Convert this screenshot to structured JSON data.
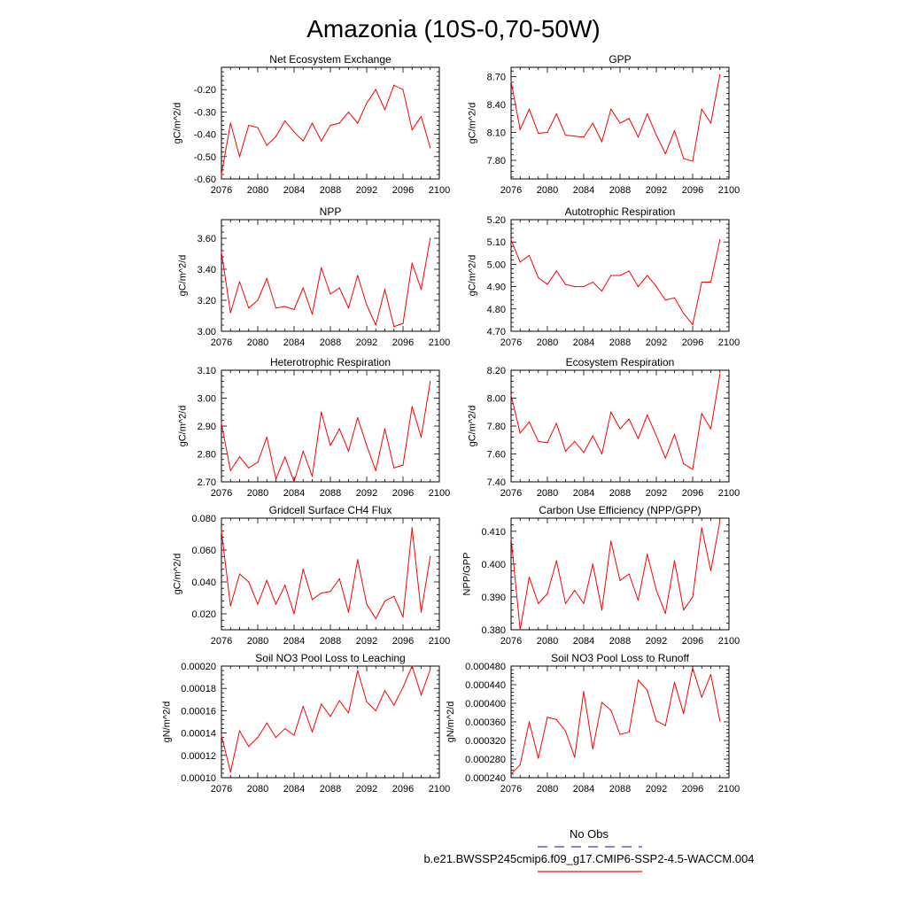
{
  "title": "Amazonia (10S-0,70-50W)",
  "legend": {
    "obs_label": "No Obs",
    "obs_color": "#3b3bd0",
    "case_label": "b.e21.BWSSP245cmip6.f09_g17.CMIP6-SSP2-4.5-WACCM.004",
    "case_color": "#ff0000"
  },
  "chart_data": [
    {
      "type": "line",
      "title": "Net Ecosystem Exchange",
      "ylabel": "gC/m^2/d",
      "xlim": [
        2076,
        2100
      ],
      "xticks": [
        2076,
        2080,
        2084,
        2088,
        2092,
        2096,
        2100
      ],
      "xtick_labels": [
        "2076",
        "2080",
        "2084",
        "2088",
        "2092",
        "2096",
        "2100"
      ],
      "ylim": [
        -0.6,
        -0.1
      ],
      "yticks": [
        -0.6,
        -0.5,
        -0.4,
        -0.3,
        -0.2
      ],
      "ytick_labels": [
        "-0.60",
        "-0.50",
        "-0.40",
        "-0.30",
        "-0.20"
      ],
      "series": [
        {
          "color": "#ff0000",
          "x": [
            2076,
            2077,
            2078,
            2079,
            2080,
            2081,
            2082,
            2083,
            2084,
            2085,
            2086,
            2087,
            2088,
            2089,
            2090,
            2091,
            2092,
            2093,
            2094,
            2095,
            2096,
            2097,
            2098,
            2099
          ],
          "values": [
            -0.58,
            -0.35,
            -0.5,
            -0.36,
            -0.37,
            -0.45,
            -0.41,
            -0.34,
            -0.39,
            -0.43,
            -0.35,
            -0.43,
            -0.36,
            -0.35,
            -0.3,
            -0.35,
            -0.26,
            -0.2,
            -0.29,
            -0.18,
            -0.2,
            -0.38,
            -0.32,
            -0.46
          ]
        }
      ]
    },
    {
      "type": "line",
      "title": "GPP",
      "ylabel": "gC/m^2/d",
      "xlim": [
        2076,
        2100
      ],
      "xticks": [
        2076,
        2080,
        2084,
        2088,
        2092,
        2096,
        2100
      ],
      "xtick_labels": [
        "2076",
        "2080",
        "2084",
        "2088",
        "2092",
        "2096",
        "2100"
      ],
      "ylim": [
        7.6,
        8.8
      ],
      "yticks": [
        7.8,
        8.1,
        8.4,
        8.7
      ],
      "ytick_labels": [
        "7.80",
        "8.10",
        "8.40",
        "8.70"
      ],
      "series": [
        {
          "color": "#ff0000",
          "x": [
            2076,
            2077,
            2078,
            2079,
            2080,
            2081,
            2082,
            2083,
            2084,
            2085,
            2086,
            2087,
            2088,
            2089,
            2090,
            2091,
            2092,
            2093,
            2094,
            2095,
            2096,
            2097,
            2098,
            2099
          ],
          "values": [
            8.65,
            8.13,
            8.35,
            8.09,
            8.1,
            8.3,
            8.07,
            8.06,
            8.05,
            8.2,
            8.0,
            8.35,
            8.2,
            8.25,
            8.05,
            8.3,
            8.07,
            7.87,
            8.12,
            7.82,
            7.79,
            8.35,
            8.2,
            8.72
          ]
        }
      ]
    },
    {
      "type": "line",
      "title": "NPP",
      "ylabel": "gC/m^2/d",
      "xlim": [
        2076,
        2100
      ],
      "xticks": [
        2076,
        2080,
        2084,
        2088,
        2092,
        2096,
        2100
      ],
      "xtick_labels": [
        "2076",
        "2080",
        "2084",
        "2088",
        "2092",
        "2096",
        "2100"
      ],
      "ylim": [
        3.0,
        3.72
      ],
      "yticks": [
        3.0,
        3.2,
        3.4,
        3.6
      ],
      "ytick_labels": [
        "3.00",
        "3.20",
        "3.40",
        "3.60"
      ],
      "series": [
        {
          "color": "#ff0000",
          "x": [
            2076,
            2077,
            2078,
            2079,
            2080,
            2081,
            2082,
            2083,
            2084,
            2085,
            2086,
            2087,
            2088,
            2089,
            2090,
            2091,
            2092,
            2093,
            2094,
            2095,
            2096,
            2097,
            2098,
            2099
          ],
          "values": [
            3.51,
            3.12,
            3.32,
            3.15,
            3.2,
            3.34,
            3.15,
            3.16,
            3.14,
            3.28,
            3.11,
            3.41,
            3.24,
            3.28,
            3.15,
            3.36,
            3.17,
            3.04,
            3.27,
            3.03,
            3.05,
            3.44,
            3.27,
            3.6
          ]
        }
      ]
    },
    {
      "type": "line",
      "title": "Autotrophic Respiration",
      "ylabel": "gC/m^2/d",
      "xlim": [
        2076,
        2100
      ],
      "xticks": [
        2076,
        2080,
        2084,
        2088,
        2092,
        2096,
        2100
      ],
      "xtick_labels": [
        "2076",
        "2080",
        "2084",
        "2088",
        "2092",
        "2096",
        "2100"
      ],
      "ylim": [
        4.7,
        5.2
      ],
      "yticks": [
        4.7,
        4.8,
        4.9,
        5.0,
        5.1,
        5.2
      ],
      "ytick_labels": [
        "4.70",
        "4.80",
        "4.90",
        "5.00",
        "5.10",
        "5.20"
      ],
      "series": [
        {
          "color": "#ff0000",
          "x": [
            2076,
            2077,
            2078,
            2079,
            2080,
            2081,
            2082,
            2083,
            2084,
            2085,
            2086,
            2087,
            2088,
            2089,
            2090,
            2091,
            2092,
            2093,
            2094,
            2095,
            2096,
            2097,
            2098,
            2099
          ],
          "values": [
            5.11,
            5.01,
            5.04,
            4.94,
            4.91,
            4.97,
            4.91,
            4.9,
            4.9,
            4.92,
            4.88,
            4.95,
            4.95,
            4.97,
            4.9,
            4.95,
            4.9,
            4.84,
            4.85,
            4.78,
            4.73,
            4.92,
            4.92,
            5.11
          ]
        }
      ]
    },
    {
      "type": "line",
      "title": "Heterotrophic Respiration",
      "ylabel": "gC/m^2/d",
      "xlim": [
        2076,
        2100
      ],
      "xticks": [
        2076,
        2080,
        2084,
        2088,
        2092,
        2096,
        2100
      ],
      "xtick_labels": [
        "2076",
        "2080",
        "2084",
        "2088",
        "2092",
        "2096",
        "2100"
      ],
      "ylim": [
        2.7,
        3.1
      ],
      "yticks": [
        2.7,
        2.8,
        2.9,
        3.0,
        3.1
      ],
      "ytick_labels": [
        "2.70",
        "2.80",
        "2.90",
        "3.00",
        "3.10"
      ],
      "series": [
        {
          "color": "#ff0000",
          "x": [
            2076,
            2077,
            2078,
            2079,
            2080,
            2081,
            2082,
            2083,
            2084,
            2085,
            2086,
            2087,
            2088,
            2089,
            2090,
            2091,
            2092,
            2093,
            2094,
            2095,
            2096,
            2097,
            2098,
            2099
          ],
          "values": [
            2.91,
            2.74,
            2.79,
            2.75,
            2.77,
            2.86,
            2.71,
            2.79,
            2.7,
            2.81,
            2.72,
            2.95,
            2.83,
            2.89,
            2.81,
            2.93,
            2.83,
            2.74,
            2.89,
            2.75,
            2.76,
            2.97,
            2.86,
            3.06
          ]
        }
      ]
    },
    {
      "type": "line",
      "title": "Ecosystem Respiration",
      "ylabel": "gC/m^2/d",
      "xlim": [
        2076,
        2100
      ],
      "xticks": [
        2076,
        2080,
        2084,
        2088,
        2092,
        2096,
        2100
      ],
      "xtick_labels": [
        "2076",
        "2080",
        "2084",
        "2088",
        "2092",
        "2096",
        "2100"
      ],
      "ylim": [
        7.4,
        8.2
      ],
      "yticks": [
        7.4,
        7.6,
        7.8,
        8.0,
        8.2
      ],
      "ytick_labels": [
        "7.40",
        "7.60",
        "7.80",
        "8.00",
        "8.20"
      ],
      "series": [
        {
          "color": "#ff0000",
          "x": [
            2076,
            2077,
            2078,
            2079,
            2080,
            2081,
            2082,
            2083,
            2084,
            2085,
            2086,
            2087,
            2088,
            2089,
            2090,
            2091,
            2092,
            2093,
            2094,
            2095,
            2096,
            2097,
            2098,
            2099
          ],
          "values": [
            8.02,
            7.75,
            7.83,
            7.69,
            7.68,
            7.82,
            7.62,
            7.69,
            7.61,
            7.73,
            7.6,
            7.9,
            7.78,
            7.85,
            7.71,
            7.88,
            7.73,
            7.57,
            7.74,
            7.53,
            7.49,
            7.89,
            7.78,
            8.17
          ]
        }
      ]
    },
    {
      "type": "line",
      "title": "Gridcell Surface CH4 Flux",
      "ylabel": "gC/m^2/d",
      "xlim": [
        2076,
        2100
      ],
      "xticks": [
        2076,
        2080,
        2084,
        2088,
        2092,
        2096,
        2100
      ],
      "xtick_labels": [
        "2076",
        "2080",
        "2084",
        "2088",
        "2092",
        "2096",
        "2100"
      ],
      "ylim": [
        0.01,
        0.08
      ],
      "yticks": [
        0.02,
        0.04,
        0.06,
        0.08
      ],
      "ytick_labels": [
        "0.020",
        "0.040",
        "0.060",
        "0.080"
      ],
      "series": [
        {
          "color": "#ff0000",
          "x": [
            2076,
            2077,
            2078,
            2079,
            2080,
            2081,
            2082,
            2083,
            2084,
            2085,
            2086,
            2087,
            2088,
            2089,
            2090,
            2091,
            2092,
            2093,
            2094,
            2095,
            2096,
            2097,
            2098,
            2099
          ],
          "values": [
            0.072,
            0.025,
            0.045,
            0.04,
            0.026,
            0.041,
            0.026,
            0.038,
            0.02,
            0.048,
            0.029,
            0.033,
            0.034,
            0.042,
            0.021,
            0.054,
            0.026,
            0.017,
            0.028,
            0.031,
            0.018,
            0.074,
            0.021,
            0.056
          ]
        }
      ]
    },
    {
      "type": "line",
      "title": "Carbon Use Efficiency (NPP/GPP)",
      "ylabel": "NPP/GPP",
      "xlim": [
        2076,
        2100
      ],
      "xticks": [
        2076,
        2080,
        2084,
        2088,
        2092,
        2096,
        2100
      ],
      "xtick_labels": [
        "2076",
        "2080",
        "2084",
        "2088",
        "2092",
        "2096",
        "2100"
      ],
      "ylim": [
        0.38,
        0.414
      ],
      "yticks": [
        0.38,
        0.39,
        0.4,
        0.41
      ],
      "ytick_labels": [
        "0.380",
        "0.390",
        "0.400",
        "0.410"
      ],
      "series": [
        {
          "color": "#ff0000",
          "x": [
            2076,
            2077,
            2078,
            2079,
            2080,
            2081,
            2082,
            2083,
            2084,
            2085,
            2086,
            2087,
            2088,
            2089,
            2090,
            2091,
            2092,
            2093,
            2094,
            2095,
            2096,
            2097,
            2098,
            2099
          ],
          "values": [
            0.408,
            0.38,
            0.396,
            0.388,
            0.391,
            0.401,
            0.388,
            0.392,
            0.388,
            0.4,
            0.386,
            0.407,
            0.395,
            0.397,
            0.389,
            0.403,
            0.392,
            0.385,
            0.401,
            0.386,
            0.39,
            0.411,
            0.398,
            0.413
          ]
        }
      ]
    },
    {
      "type": "line",
      "title": "Soil NO3 Pool Loss to Leaching",
      "ylabel": "gN/m^2/d",
      "xlim": [
        2076,
        2100
      ],
      "xticks": [
        2076,
        2080,
        2084,
        2088,
        2092,
        2096,
        2100
      ],
      "xtick_labels": [
        "2076",
        "2080",
        "2084",
        "2088",
        "2092",
        "2096",
        "2100"
      ],
      "ylim": [
        0.0001,
        0.0002
      ],
      "yticks": [
        0.0001,
        0.00012,
        0.00014,
        0.00016,
        0.00018,
        0.0002
      ],
      "ytick_labels": [
        "0.00010",
        "0.00012",
        "0.00014",
        "0.00016",
        "0.00018",
        "0.00020"
      ],
      "series": [
        {
          "color": "#ff0000",
          "x": [
            2076,
            2077,
            2078,
            2079,
            2080,
            2081,
            2082,
            2083,
            2084,
            2085,
            2086,
            2087,
            2088,
            2089,
            2090,
            2091,
            2092,
            2093,
            2094,
            2095,
            2096,
            2097,
            2098,
            2099
          ],
          "values": [
            0.000138,
            0.000105,
            0.000142,
            0.000128,
            0.000136,
            0.000149,
            0.000136,
            0.000144,
            0.000138,
            0.000164,
            0.000141,
            0.000166,
            0.000155,
            0.000169,
            0.000158,
            0.000196,
            0.000168,
            0.00016,
            0.000178,
            0.000165,
            0.000181,
            0.0002,
            0.000174,
            0.000197
          ]
        }
      ]
    },
    {
      "type": "line",
      "title": "Soil NO3 Pool Loss to Runoff",
      "ylabel": "gN/m^2/d",
      "xlim": [
        2076,
        2100
      ],
      "xticks": [
        2076,
        2080,
        2084,
        2088,
        2092,
        2096,
        2100
      ],
      "xtick_labels": [
        "2076",
        "2080",
        "2084",
        "2088",
        "2092",
        "2096",
        "2100"
      ],
      "ylim": [
        0.00024,
        0.00048
      ],
      "yticks": [
        0.00024,
        0.00028,
        0.00032,
        0.00036,
        0.0004,
        0.00044,
        0.00048
      ],
      "ytick_labels": [
        "0.000240",
        "0.000280",
        "0.000320",
        "0.000360",
        "0.000400",
        "0.000440",
        "0.000480"
      ],
      "series": [
        {
          "color": "#ff0000",
          "x": [
            2076,
            2077,
            2078,
            2079,
            2080,
            2081,
            2082,
            2083,
            2084,
            2085,
            2086,
            2087,
            2088,
            2089,
            2090,
            2091,
            2092,
            2093,
            2094,
            2095,
            2096,
            2097,
            2098,
            2099
          ],
          "values": [
            0.000248,
            0.000268,
            0.00036,
            0.000282,
            0.00037,
            0.000365,
            0.00034,
            0.000284,
            0.000425,
            0.000302,
            0.000402,
            0.000385,
            0.000333,
            0.000338,
            0.00045,
            0.000428,
            0.000362,
            0.000352,
            0.000445,
            0.000378,
            0.000476,
            0.000413,
            0.000462,
            0.000362
          ]
        }
      ]
    }
  ]
}
